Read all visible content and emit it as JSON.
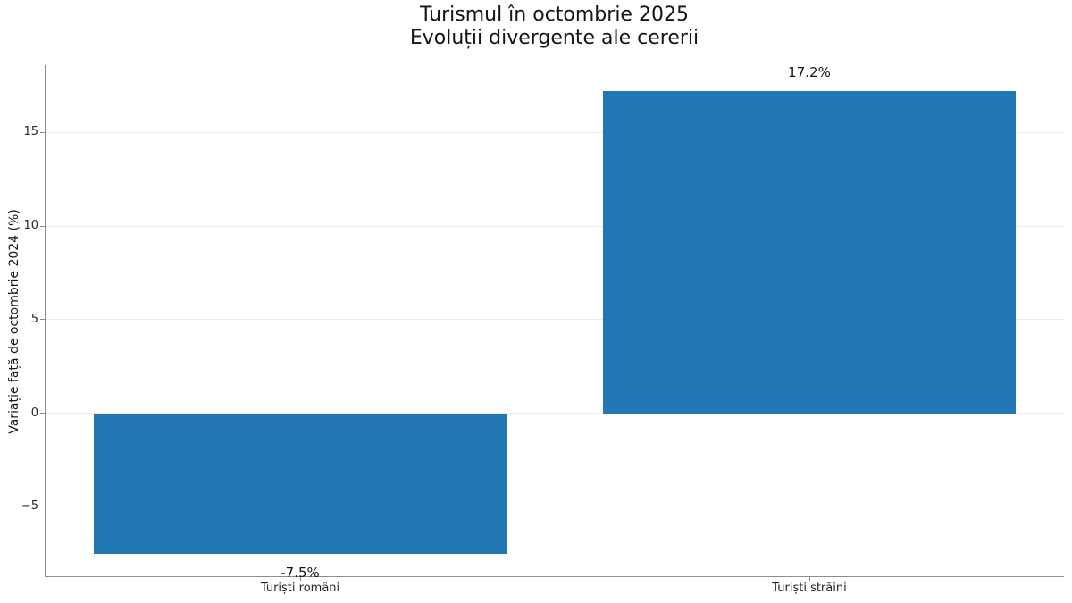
{
  "title": {
    "line1": "Turismul în octombrie 2025",
    "line2": "Evoluții divergente ale cererii"
  },
  "chart_data": {
    "type": "bar",
    "title": "Turismul în octombrie 2025",
    "subtitle": "Evoluții divergente ale cererii",
    "categories": [
      "Turiști români",
      "Turiști străini"
    ],
    "values": [
      -7.5,
      17.2
    ],
    "value_labels": [
      "-7.5%",
      "17.2%"
    ],
    "xlabel": "",
    "ylabel": "Variație față de octombrie 2024 (%)",
    "ylim": [
      -8.7,
      18.6
    ],
    "yticks": [
      -5,
      0,
      5,
      10,
      15
    ],
    "ytick_labels": [
      "−5",
      "0",
      "5",
      "10",
      "15"
    ],
    "grid": true,
    "legend": "none",
    "bar_color": "#2177b4"
  }
}
